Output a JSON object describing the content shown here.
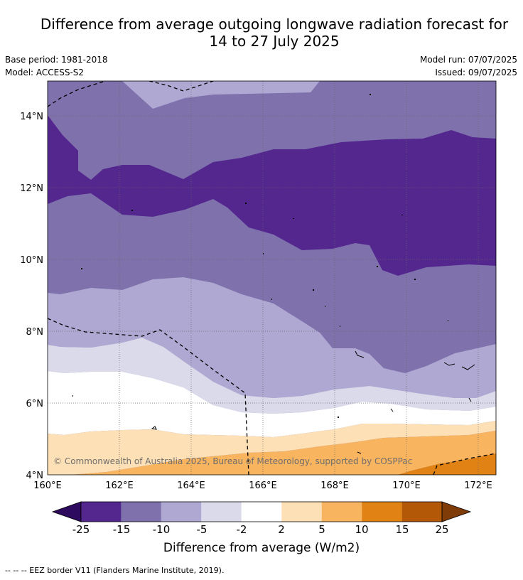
{
  "title_line1": "Difference from average outgoing longwave radiation forecast for",
  "title_line2": "14 to 27 July 2025",
  "base_period": "Base period: 1981-2018",
  "model": "Model: ACCESS-S2",
  "model_run": "Model run: 07/07/2025",
  "issued": "Issued: 09/07/2025",
  "copyright": "© Commonwealth of Australia 2025, Bureau of Meteorology, supported by COSPPac",
  "lat_labels": [
    "14°N",
    "12°N",
    "10°N",
    "8°N",
    "6°N",
    "4°N"
  ],
  "lon_labels": [
    "160°E",
    "162°E",
    "164°E",
    "166°E",
    "168°E",
    "170°E",
    "172°E"
  ],
  "colorbar": {
    "ticks": [
      "-25",
      "-15",
      "-10",
      "-5",
      "-2",
      "2",
      "5",
      "10",
      "15",
      "25"
    ],
    "colors": [
      "#2d0a5e",
      "#54278f",
      "#7e71ac",
      "#afa8d2",
      "#dadaeb",
      "#ffffff",
      "#fde0b5",
      "#f9b45f",
      "#e08314",
      "#b35806",
      "#7f3b08"
    ],
    "label": "Difference from average (W/m2)"
  },
  "footer": "--  --  -- EEZ border V11 (Flanders Marine Institute, 2019)."
}
